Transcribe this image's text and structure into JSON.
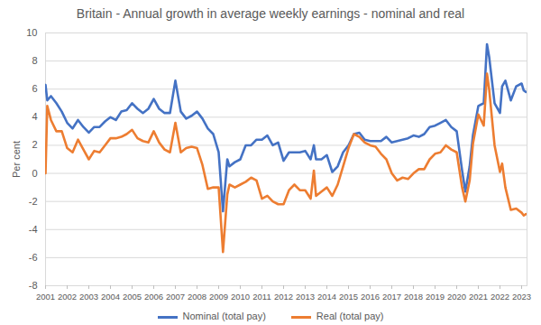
{
  "chart_data": {
    "type": "line",
    "title": "Britain - Annual growth in average weekly earnings - nominal and real",
    "y_label": "Per cent",
    "x": [
      2001,
      2001.08,
      2001.25,
      2001.5,
      2001.75,
      2002,
      2002.25,
      2002.5,
      2002.75,
      2003,
      2003.25,
      2003.5,
      2003.75,
      2004,
      2004.25,
      2004.5,
      2004.75,
      2005,
      2005.25,
      2005.5,
      2005.75,
      2006,
      2006.25,
      2006.5,
      2006.75,
      2007,
      2007.25,
      2007.5,
      2007.75,
      2008,
      2008.25,
      2008.5,
      2008.75,
      2009,
      2009.2,
      2009.4,
      2009.5,
      2009.75,
      2010,
      2010.25,
      2010.5,
      2010.75,
      2011,
      2011.25,
      2011.5,
      2011.75,
      2012,
      2012.25,
      2012.5,
      2012.75,
      2013,
      2013.25,
      2013.4,
      2013.5,
      2013.75,
      2014,
      2014.25,
      2014.5,
      2014.75,
      2015,
      2015.25,
      2015.5,
      2015.75,
      2016,
      2016.25,
      2016.5,
      2016.75,
      2017,
      2017.25,
      2017.5,
      2017.75,
      2018,
      2018.25,
      2018.5,
      2018.75,
      2019,
      2019.25,
      2019.5,
      2019.75,
      2020,
      2020.25,
      2020.4,
      2020.6,
      2020.75,
      2021,
      2021.25,
      2021.4,
      2021.5,
      2021.75,
      2022,
      2022.1,
      2022.25,
      2022.5,
      2022.75,
      2023,
      2023.1,
      2023.2
    ],
    "series": [
      {
        "name": "Nominal (total pay)",
        "color": "#4472c4",
        "values": [
          6.3,
          5.2,
          5.5,
          5.0,
          4.4,
          3.6,
          3.2,
          3.8,
          3.3,
          2.9,
          3.3,
          3.3,
          3.7,
          4.0,
          3.8,
          4.4,
          4.5,
          5.0,
          4.6,
          4.3,
          4.6,
          5.3,
          4.6,
          4.3,
          4.3,
          6.6,
          4.4,
          3.9,
          4.1,
          4.4,
          3.9,
          3.2,
          2.8,
          1.5,
          -2.7,
          1.0,
          0.5,
          0.8,
          1.0,
          2.0,
          2.0,
          2.4,
          2.4,
          2.7,
          2.0,
          2.2,
          0.9,
          1.5,
          1.5,
          1.5,
          1.6,
          1.0,
          2.0,
          1.0,
          1.0,
          1.3,
          0.1,
          0.5,
          1.5,
          2.0,
          2.8,
          2.9,
          2.4,
          2.3,
          2.3,
          2.3,
          2.6,
          2.2,
          2.3,
          2.4,
          2.5,
          2.7,
          2.6,
          2.8,
          3.3,
          3.4,
          3.6,
          3.8,
          3.3,
          3.0,
          0.2,
          -1.3,
          0.5,
          2.7,
          4.8,
          5.0,
          9.2,
          8.3,
          5.0,
          4.3,
          6.2,
          6.6,
          5.2,
          6.2,
          6.4,
          5.9,
          5.8
        ]
      },
      {
        "name": "Real (total pay)",
        "color": "#ed7d31",
        "values": [
          0,
          4.8,
          3.8,
          3.0,
          3.0,
          1.8,
          1.5,
          2.4,
          1.7,
          1.0,
          1.6,
          1.5,
          2.0,
          2.5,
          2.5,
          2.6,
          2.8,
          3.1,
          2.5,
          2.3,
          2.2,
          3.0,
          2.2,
          1.7,
          1.5,
          3.6,
          1.5,
          1.8,
          1.9,
          1.8,
          0.6,
          -1.1,
          -1.0,
          -1.0,
          -5.6,
          -1.5,
          -0.8,
          -1.0,
          -0.8,
          -0.6,
          -0.3,
          -0.5,
          -1.8,
          -1.6,
          -2.0,
          -2.2,
          -2.2,
          -1.2,
          -0.8,
          -1.2,
          -1.2,
          -1.8,
          0.2,
          -1.6,
          -1.3,
          -1.0,
          -1.6,
          -0.8,
          0.5,
          1.8,
          2.8,
          2.6,
          2.2,
          2.0,
          1.9,
          1.4,
          1.0,
          0.0,
          -0.5,
          -0.3,
          -0.4,
          0.0,
          0.3,
          0.3,
          1.0,
          1.4,
          1.5,
          2.0,
          1.7,
          1.5,
          -1.0,
          -2.0,
          -0.5,
          2.1,
          4.2,
          3.4,
          7.1,
          6.0,
          2.0,
          0.1,
          0.7,
          -1.0,
          -2.6,
          -2.5,
          -2.8,
          -3.0,
          -2.9
        ]
      }
    ],
    "xlim": [
      2001,
      2023.25
    ],
    "xticks": [
      2001,
      2002,
      2003,
      2004,
      2005,
      2006,
      2007,
      2008,
      2009,
      2010,
      2011,
      2012,
      2013,
      2014,
      2015,
      2016,
      2017,
      2018,
      2019,
      2020,
      2021,
      2022,
      2023
    ],
    "ylim": [
      -8,
      10
    ],
    "yticks": [
      -8,
      -6,
      -4,
      -2,
      0,
      2,
      4,
      6,
      8,
      10
    ],
    "grid": true,
    "legend": "bottom"
  }
}
